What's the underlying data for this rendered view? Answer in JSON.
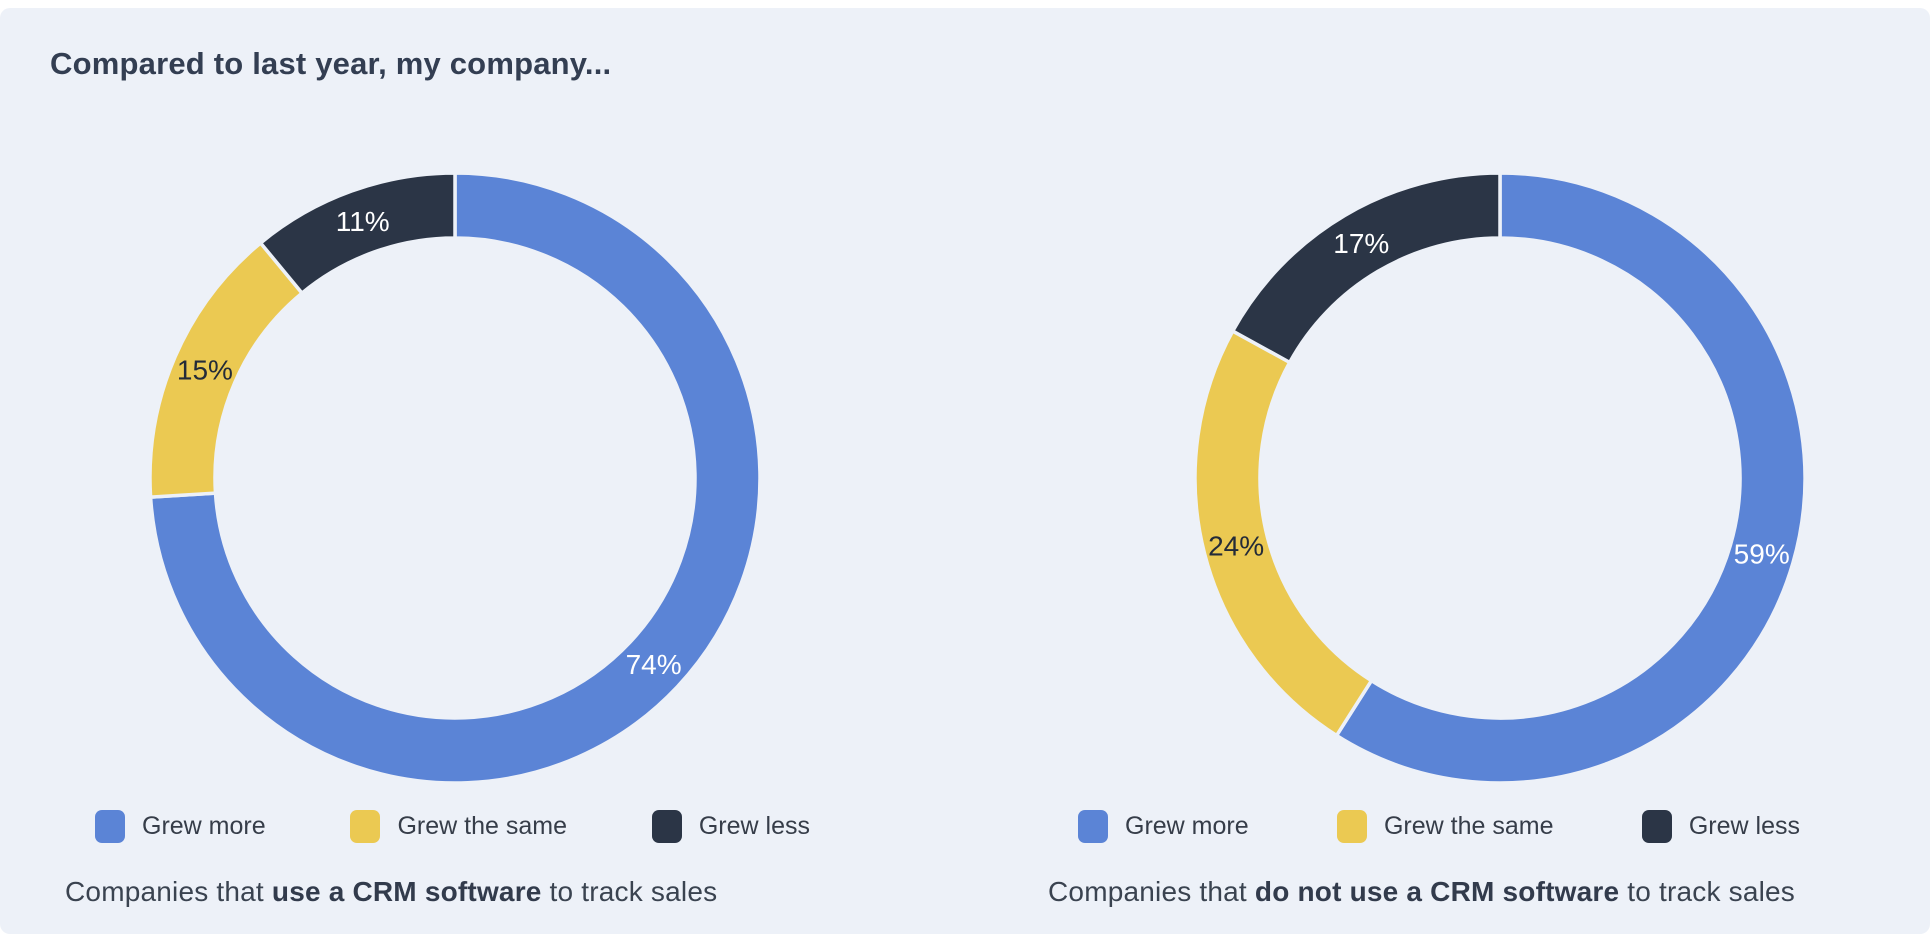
{
  "page": {
    "title": "Compared to last year, my company...",
    "panel_background": "#EDF1F8",
    "frame_background": "#FFFFFF",
    "title_color": "#333E52"
  },
  "chart_data": [
    {
      "type": "pie",
      "subtype": "donut",
      "start_angle": "top",
      "direction": "clockwise",
      "categories": [
        "Grew more",
        "Grew the same",
        "Grew less"
      ],
      "values": [
        74,
        15,
        11
      ],
      "unit": "%",
      "value_labels": [
        "74%",
        "15%",
        "11%"
      ],
      "slice_colors": [
        "#5B84D6",
        "#EBC952",
        "#2B3546"
      ],
      "value_label_colors": [
        "#FFFFFF",
        "#242B38",
        "#FFFFFF"
      ],
      "legend_position": "bottom",
      "caption": {
        "prefix": "Companies that ",
        "bold": "use a CRM software",
        "suffix": " to track sales"
      }
    },
    {
      "type": "pie",
      "subtype": "donut",
      "start_angle": "top",
      "direction": "clockwise",
      "categories": [
        "Grew more",
        "Grew the same",
        "Grew less"
      ],
      "values": [
        59,
        24,
        17
      ],
      "unit": "%",
      "value_labels": [
        "59%",
        "24%",
        "17%"
      ],
      "slice_colors": [
        "#5B84D6",
        "#EBC952",
        "#2B3546"
      ],
      "value_label_colors": [
        "#FFFFFF",
        "#242B38",
        "#FFFFFF"
      ],
      "legend_position": "bottom",
      "caption": {
        "prefix": "Companies that ",
        "bold": "do not use a CRM software",
        "suffix": " to track sales"
      }
    }
  ]
}
